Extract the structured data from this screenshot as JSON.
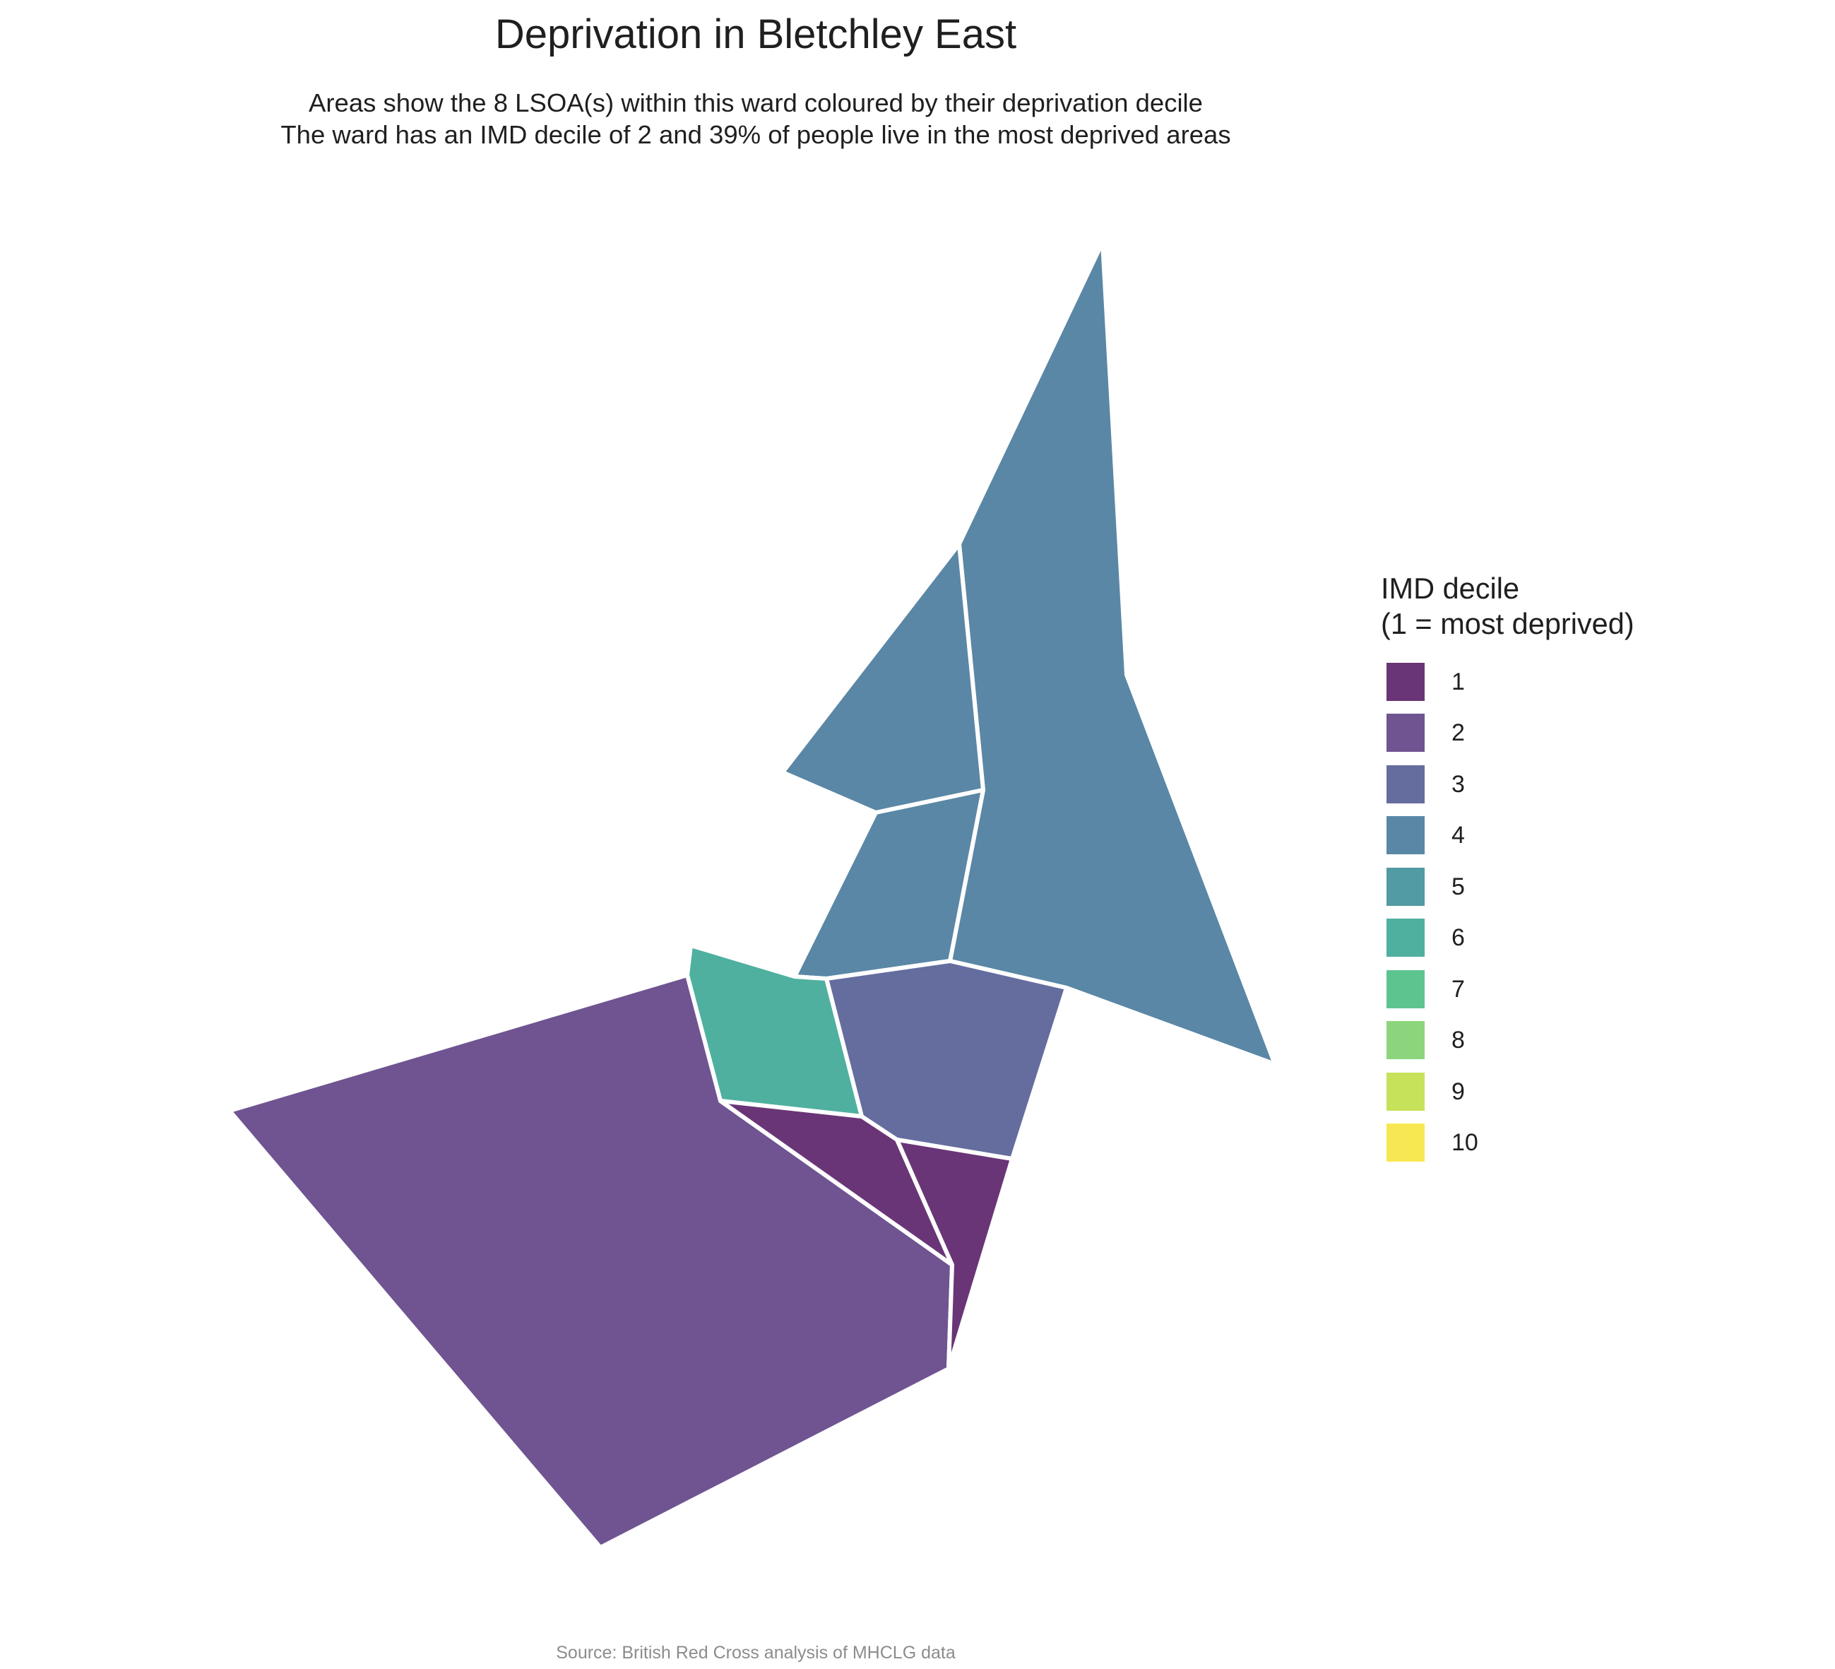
{
  "title": "Deprivation in Bletchley East",
  "subtitle": {
    "line1": "Areas show the 8 LSOA(s) within this ward coloured by their deprivation decile",
    "line2": "The ward has an IMD decile of 2 and 39% of people live in the most deprived areas"
  },
  "legend": {
    "title_line1": "IMD decile",
    "title_line2": "(1 = most deprived)",
    "items": [
      {
        "label": "1",
        "color": "#6a3576"
      },
      {
        "label": "2",
        "color": "#6f5491"
      },
      {
        "label": "3",
        "color": "#656d9f"
      },
      {
        "label": "4",
        "color": "#5a87a5"
      },
      {
        "label": "5",
        "color": "#529aa4"
      },
      {
        "label": "6",
        "color": "#4fb0a0"
      },
      {
        "label": "7",
        "color": "#5ec48f"
      },
      {
        "label": "8",
        "color": "#8cd57c"
      },
      {
        "label": "9",
        "color": "#c6e25a"
      },
      {
        "label": "10",
        "color": "#f7e853"
      }
    ]
  },
  "map_data": {
    "ward": "Bletchley East",
    "ward_imd_decile": 2,
    "percent_most_deprived": 39,
    "lsoa_count": 8,
    "lsoas": [
      {
        "decile": 4
      },
      {
        "decile": 4
      },
      {
        "decile": 4
      },
      {
        "decile": 3
      },
      {
        "decile": 6
      },
      {
        "decile": 2
      },
      {
        "decile": 1
      },
      {
        "decile": 1
      }
    ]
  },
  "caption": "Source: British Red Cross analysis of MHCLG data"
}
